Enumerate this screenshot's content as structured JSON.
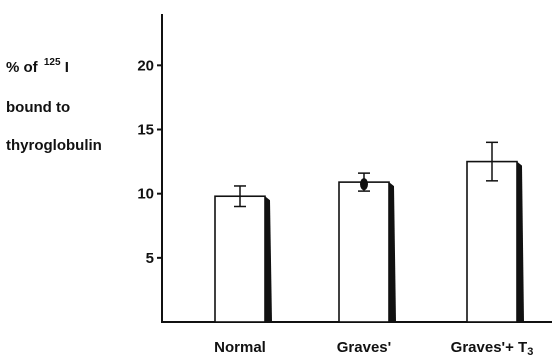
{
  "chart_data": {
    "type": "bar",
    "ylabel_lines": [
      {
        "text": "% of ",
        "sup": "125",
        "suffix": " I"
      },
      {
        "text": "bound to"
      },
      {
        "text": "thyroglobulin"
      }
    ],
    "categories": [
      {
        "label": "Normal",
        "sub": ""
      },
      {
        "label": "Graves'",
        "sub": ""
      },
      {
        "label": "Graves'+ T",
        "sub": "3"
      }
    ],
    "values": [
      9.8,
      10.9,
      12.5
    ],
    "errors": [
      0.8,
      0.7,
      1.5
    ],
    "ylim": [
      0,
      24
    ],
    "yticks": [
      5,
      10,
      15,
      20
    ],
    "colors": {
      "bar_fill": "#ffffff",
      "bar_shadow": "#111111",
      "axis": "#111111"
    }
  }
}
